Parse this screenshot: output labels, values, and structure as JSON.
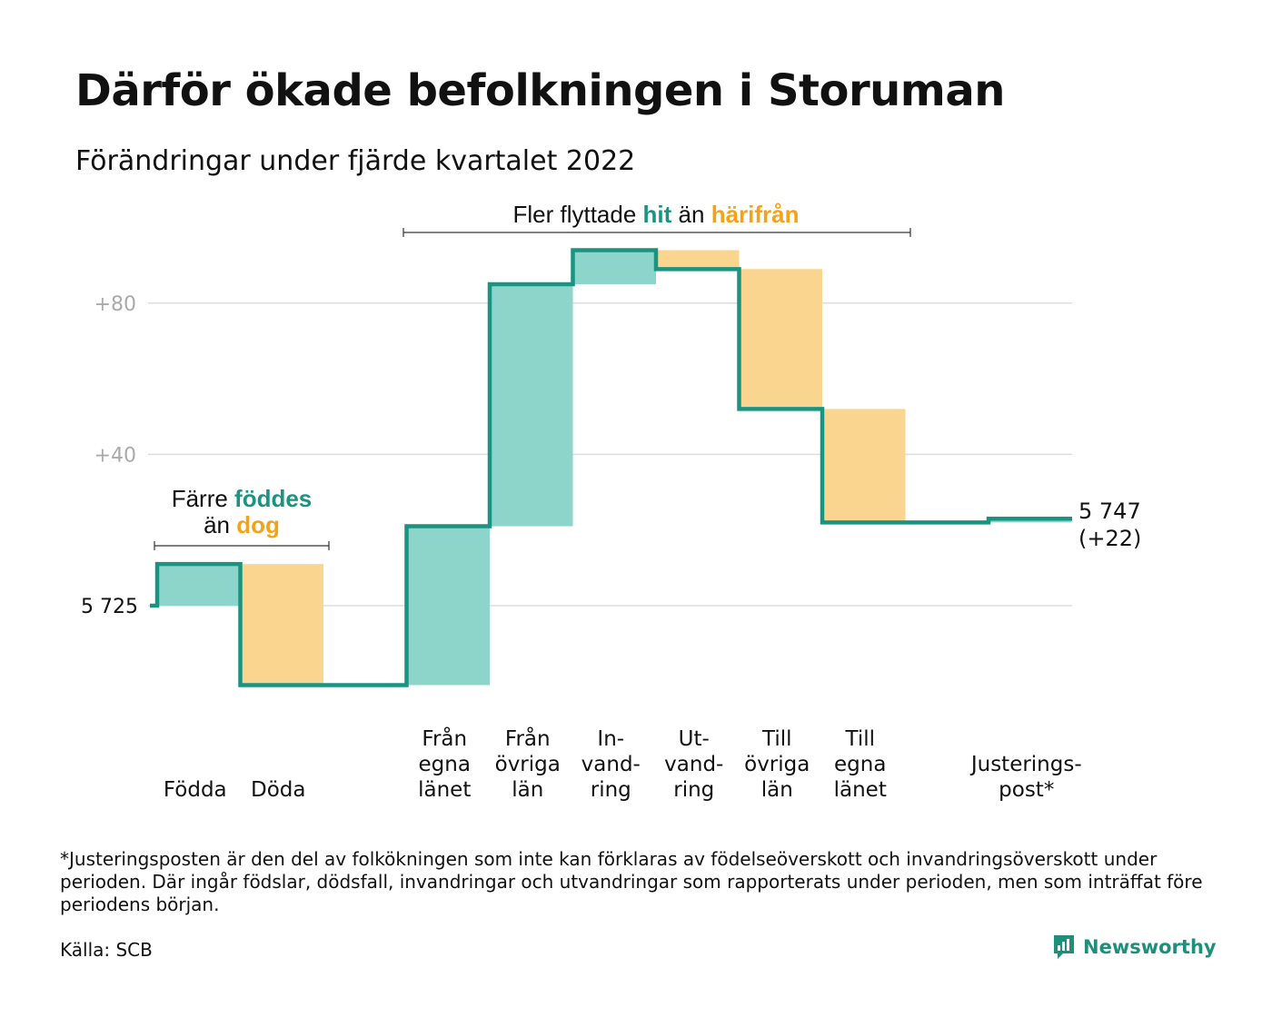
{
  "title": "Därför ökade befolkningen i Storuman",
  "subtitle": "Förändringar under fjärde kvartalet 2022",
  "colors": {
    "increase_line": "#1a9482",
    "increase_fill": "#8dd5cb",
    "decrease_fill": "#fad58f",
    "hit_text": "#1a9482",
    "harifran_text": "#f4a21a",
    "grid": "#dddddd"
  },
  "annotations": {
    "migration": {
      "prefix": "Fler flyttade ",
      "hit": "hit",
      "mid": " än ",
      "harifran": "härifrån"
    },
    "births": {
      "line1_prefix": "Färre ",
      "line1_highlight": "föddes",
      "line2_prefix": "än ",
      "line2_highlight": "dog"
    }
  },
  "end_label": {
    "line1": "5 747",
    "line2": "(+22)"
  },
  "footnote": "*Justeringsposten är den del av folkökningen som inte kan förklaras av födelseöverskott och invandringsöverskott under perioden. Där ingår födslar, dödsfall, invandringar och utvandringar som rapporterats under perioden, men som inträffat före periodens början.",
  "source": "Källa: SCB",
  "brand": "Newsworthy",
  "chart_data": {
    "type": "waterfall",
    "start_value": 5725,
    "start_label": "5 725",
    "yticks": [
      {
        "value": 80,
        "label": "+80"
      },
      {
        "value": 40,
        "label": "+40"
      }
    ],
    "ylim": [
      -24,
      95
    ],
    "grid": true,
    "categories": [
      {
        "lines": [
          "Födda"
        ],
        "change": 11
      },
      {
        "lines": [
          "Döda"
        ],
        "change": -32
      },
      {
        "lines": [],
        "change": 0
      },
      {
        "lines": [
          "Från",
          "egna",
          "länet"
        ],
        "change": 42
      },
      {
        "lines": [
          "Från",
          "övriga",
          "län"
        ],
        "change": 64
      },
      {
        "lines": [
          "In-",
          "vand-",
          "ring"
        ],
        "change": 9
      },
      {
        "lines": [
          "Ut-",
          "vand-",
          "ring"
        ],
        "change": -5
      },
      {
        "lines": [
          "Till",
          "övriga",
          "län"
        ],
        "change": -37
      },
      {
        "lines": [
          "Till",
          "egna",
          "länet"
        ],
        "change": -30
      },
      {
        "lines": [],
        "change": 0
      },
      {
        "lines": [
          "Justerings-",
          "post*"
        ],
        "change": 1
      }
    ],
    "end_value": 5747,
    "end_change": 22
  }
}
